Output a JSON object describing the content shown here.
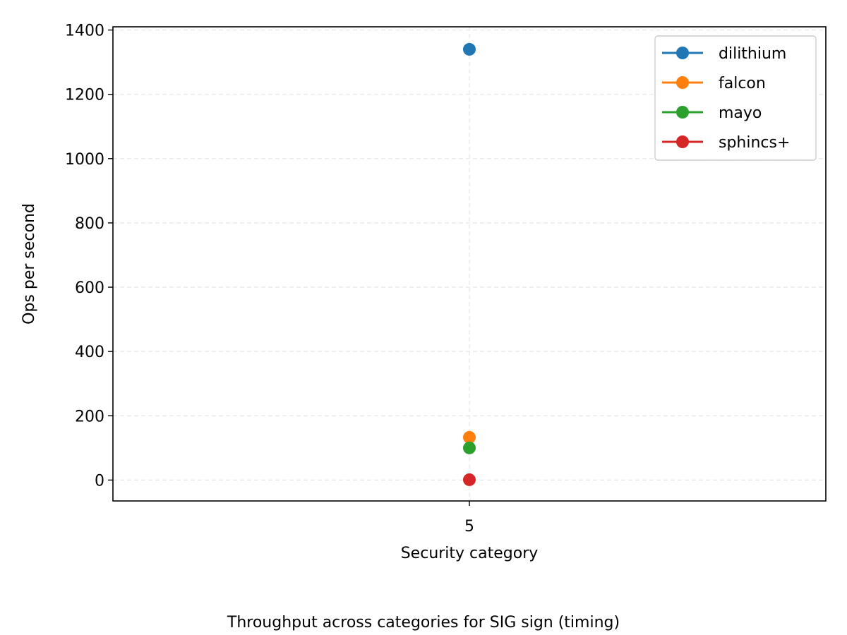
{
  "chart_data": {
    "type": "line",
    "caption": "Throughput across categories for SIG sign (timing)",
    "xlabel": "Security category",
    "ylabel": "Ops per second",
    "x": [
      5
    ],
    "x_tick_labels": [
      "5"
    ],
    "y_ticks": [
      0,
      200,
      400,
      600,
      800,
      1000,
      1200,
      1400
    ],
    "ylim": [
      -65,
      1410
    ],
    "grid": true,
    "legend_position": "top-right",
    "series": [
      {
        "name": "dilithium",
        "color": "#1f77b4",
        "values": [
          1340
        ]
      },
      {
        "name": "falcon",
        "color": "#ff7f0e",
        "values": [
          133
        ]
      },
      {
        "name": "mayo",
        "color": "#2ca02c",
        "values": [
          100
        ]
      },
      {
        "name": "sphincs+",
        "color": "#d62728",
        "values": [
          1
        ]
      }
    ]
  }
}
